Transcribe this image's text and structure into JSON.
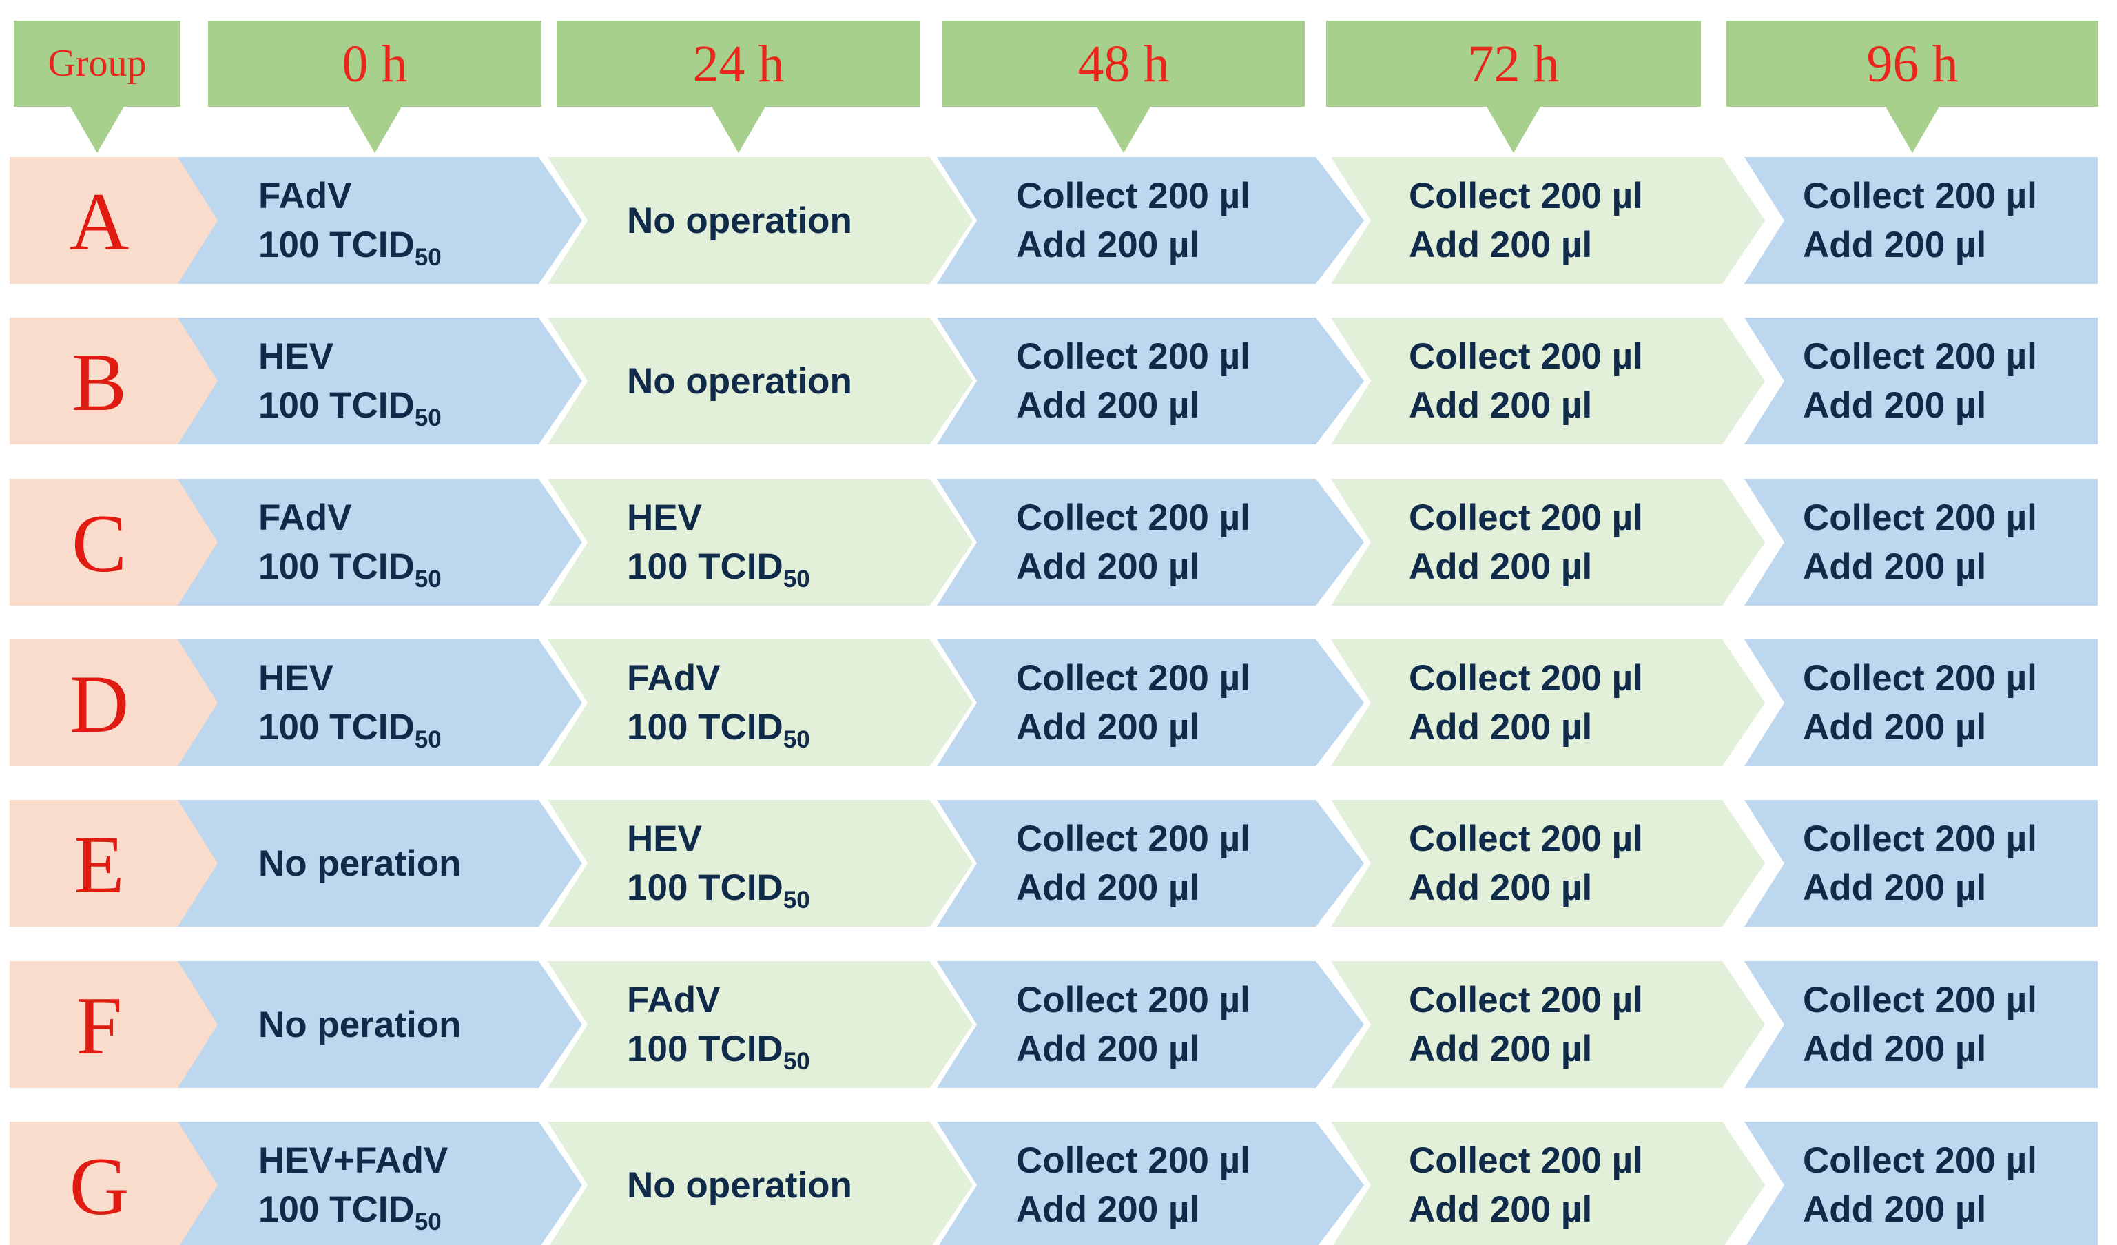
{
  "colors": {
    "header_fill": "#a8d08d",
    "header_text": "#e8261c",
    "group_chevron": "#f9dccc",
    "blue_cell": "#bdd7ee",
    "green_cell": "#e2efd9",
    "cell_text": "#102a4a"
  },
  "headers": [
    {
      "label": "Group"
    },
    {
      "label": "0 h"
    },
    {
      "label": "24 h"
    },
    {
      "label": "48 h"
    },
    {
      "label": "72 h"
    },
    {
      "label": "96 h"
    }
  ],
  "rows": [
    {
      "group": "A",
      "cells": [
        {
          "lines": [
            {
              "text": "FAdV"
            },
            {
              "text": "100 TCID",
              "sub": "50"
            }
          ]
        },
        {
          "lines": [
            {
              "text": "No operation"
            }
          ]
        },
        {
          "lines": [
            {
              "text": "Collect 200 µl"
            },
            {
              "text": "Add 200 µl"
            }
          ]
        },
        {
          "lines": [
            {
              "text": "Collect 200 µl"
            },
            {
              "text": "Add 200 µl"
            }
          ]
        },
        {
          "lines": [
            {
              "text": "Collect 200 µl"
            },
            {
              "text": "Add 200 µl"
            }
          ]
        }
      ]
    },
    {
      "group": "B",
      "cells": [
        {
          "lines": [
            {
              "text": "HEV"
            },
            {
              "text": "100 TCID",
              "sub": "50"
            }
          ]
        },
        {
          "lines": [
            {
              "text": "No operation"
            }
          ]
        },
        {
          "lines": [
            {
              "text": "Collect 200 µl"
            },
            {
              "text": "Add 200 µl"
            }
          ]
        },
        {
          "lines": [
            {
              "text": "Collect 200 µl"
            },
            {
              "text": "Add 200 µl"
            }
          ]
        },
        {
          "lines": [
            {
              "text": "Collect 200 µl"
            },
            {
              "text": "Add 200 µl"
            }
          ]
        }
      ]
    },
    {
      "group": "C",
      "cells": [
        {
          "lines": [
            {
              "text": "FAdV"
            },
            {
              "text": "100 TCID",
              "sub": "50"
            }
          ]
        },
        {
          "lines": [
            {
              "text": "HEV"
            },
            {
              "text": "100 TCID",
              "sub": "50"
            }
          ]
        },
        {
          "lines": [
            {
              "text": "Collect 200 µl"
            },
            {
              "text": "Add 200 µl"
            }
          ]
        },
        {
          "lines": [
            {
              "text": "Collect 200 µl"
            },
            {
              "text": "Add 200 µl"
            }
          ]
        },
        {
          "lines": [
            {
              "text": "Collect 200 µl"
            },
            {
              "text": "Add 200 µl"
            }
          ]
        }
      ]
    },
    {
      "group": "D",
      "cells": [
        {
          "lines": [
            {
              "text": "HEV"
            },
            {
              "text": "100 TCID",
              "sub": "50"
            }
          ]
        },
        {
          "lines": [
            {
              "text": "FAdV"
            },
            {
              "text": "100 TCID",
              "sub": "50"
            }
          ]
        },
        {
          "lines": [
            {
              "text": "Collect 200 µl"
            },
            {
              "text": "Add 200 µl"
            }
          ]
        },
        {
          "lines": [
            {
              "text": "Collect 200 µl"
            },
            {
              "text": "Add 200 µl"
            }
          ]
        },
        {
          "lines": [
            {
              "text": "Collect 200 µl"
            },
            {
              "text": "Add 200 µl"
            }
          ]
        }
      ]
    },
    {
      "group": "E",
      "cells": [
        {
          "lines": [
            {
              "text": "No peration"
            }
          ]
        },
        {
          "lines": [
            {
              "text": "HEV"
            },
            {
              "text": "100 TCID",
              "sub": "50"
            }
          ]
        },
        {
          "lines": [
            {
              "text": "Collect 200 µl"
            },
            {
              "text": "Add 200 µl"
            }
          ]
        },
        {
          "lines": [
            {
              "text": "Collect 200 µl"
            },
            {
              "text": "Add 200 µl"
            }
          ]
        },
        {
          "lines": [
            {
              "text": "Collect 200 µl"
            },
            {
              "text": "Add 200 µl"
            }
          ]
        }
      ]
    },
    {
      "group": "F",
      "cells": [
        {
          "lines": [
            {
              "text": "No peration"
            }
          ]
        },
        {
          "lines": [
            {
              "text": "FAdV"
            },
            {
              "text": "100 TCID",
              "sub": "50"
            }
          ]
        },
        {
          "lines": [
            {
              "text": "Collect 200 µl"
            },
            {
              "text": "Add 200 µl"
            }
          ]
        },
        {
          "lines": [
            {
              "text": "Collect 200 µl"
            },
            {
              "text": "Add 200 µl"
            }
          ]
        },
        {
          "lines": [
            {
              "text": "Collect 200 µl"
            },
            {
              "text": "Add 200 µl"
            }
          ]
        }
      ]
    },
    {
      "group": "G",
      "cells": [
        {
          "lines": [
            {
              "text": "HEV+FAdV"
            },
            {
              "text": "100 TCID",
              "sub": "50"
            }
          ]
        },
        {
          "lines": [
            {
              "text": "No operation"
            }
          ]
        },
        {
          "lines": [
            {
              "text": "Collect 200 µl"
            },
            {
              "text": "Add 200 µl"
            }
          ]
        },
        {
          "lines": [
            {
              "text": "Collect 200 µl"
            },
            {
              "text": "Add 200 µl"
            }
          ]
        },
        {
          "lines": [
            {
              "text": "Collect 200 µl"
            },
            {
              "text": "Add 200 µl"
            }
          ]
        }
      ]
    }
  ]
}
